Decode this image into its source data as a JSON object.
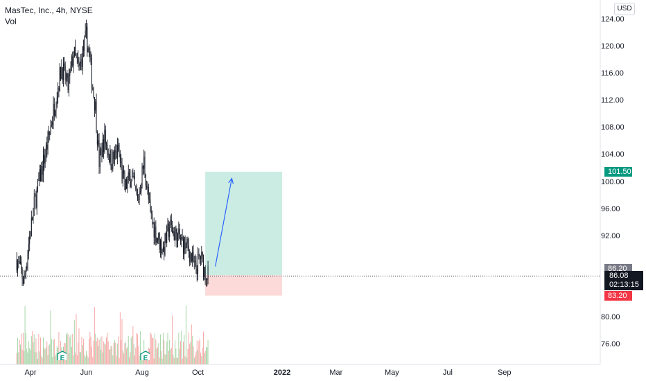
{
  "header": {
    "symbol_title": "MasTec, Inc., 4h, NYSE",
    "volume_label": "Vol",
    "currency_button": "USD"
  },
  "colors": {
    "up": "#131722",
    "down": "#131722",
    "target_zone": "#b9e6da",
    "stop_zone": "#fbd1d1",
    "arrow": "#2962ff",
    "target_tag": "#089981",
    "stop_tag": "#f23645",
    "entry_tag": "#787b86",
    "vol_up": "#a5d6a7",
    "vol_down": "#f7a9a7",
    "earnings": "#089981"
  },
  "chart_data": {
    "type": "candlestick",
    "title": "MasTec, Inc., 4h, NYSE",
    "ylim": [
      72,
      126
    ],
    "y_ticks": [
      "124.00",
      "120.00",
      "116.00",
      "112.00",
      "108.00",
      "104.00",
      "100.00",
      "96.00",
      "92.00",
      "80.00",
      "76.00"
    ],
    "x_ticks": [
      "Apr",
      "Jun",
      "Aug",
      "Oct",
      "2022",
      "Mar",
      "May",
      "Jul",
      "Sep"
    ],
    "x_tick_bold": "2022",
    "last_price": "86.08",
    "countdown": "02:13:15",
    "price_path": [
      [
        "2021-03-17",
        88.5
      ],
      [
        "2021-03-25",
        85.2
      ],
      [
        "2021-03-30",
        91.0
      ],
      [
        "2021-04-05",
        96.5
      ],
      [
        "2021-04-12",
        101.0
      ],
      [
        "2021-04-20",
        106.0
      ],
      [
        "2021-04-28",
        112.0
      ],
      [
        "2021-05-05",
        117.0
      ],
      [
        "2021-05-12",
        114.0
      ],
      [
        "2021-05-18",
        119.0
      ],
      [
        "2021-05-24",
        116.5
      ],
      [
        "2021-06-01",
        121.5
      ],
      [
        "2021-06-04",
        119.0
      ],
      [
        "2021-06-08",
        114.0
      ],
      [
        "2021-06-11",
        111.0
      ],
      [
        "2021-06-15",
        103.0
      ],
      [
        "2021-06-21",
        106.5
      ],
      [
        "2021-06-28",
        103.0
      ],
      [
        "2021-07-06",
        104.5
      ],
      [
        "2021-07-13",
        99.0
      ],
      [
        "2021-07-20",
        101.0
      ],
      [
        "2021-07-27",
        97.0
      ],
      [
        "2021-08-03",
        103.0
      ],
      [
        "2021-08-10",
        95.0
      ],
      [
        "2021-08-17",
        92.0
      ],
      [
        "2021-08-24",
        90.0
      ],
      [
        "2021-08-31",
        93.5
      ],
      [
        "2021-09-07",
        92.0
      ],
      [
        "2021-09-14",
        91.0
      ],
      [
        "2021-09-21",
        90.0
      ],
      [
        "2021-09-28",
        87.0
      ],
      [
        "2021-10-04",
        89.0
      ],
      [
        "2021-10-08",
        87.0
      ],
      [
        "2021-10-13",
        86.08
      ]
    ],
    "annotations": {
      "long_position": {
        "start": "2021-10-09",
        "end": "2022-01-01",
        "entry": 86.2,
        "target": 101.5,
        "stop": 83.2
      },
      "arrow": {
        "from": [
          "2021-10-20",
          87.5
        ],
        "to": [
          "2021-11-07",
          100.5
        ]
      },
      "earnings_dates": [
        "2021-05-06",
        "2021-08-05"
      ],
      "tags": {
        "target": "101.50",
        "entry": "86.20",
        "stop": "83.20"
      }
    }
  }
}
